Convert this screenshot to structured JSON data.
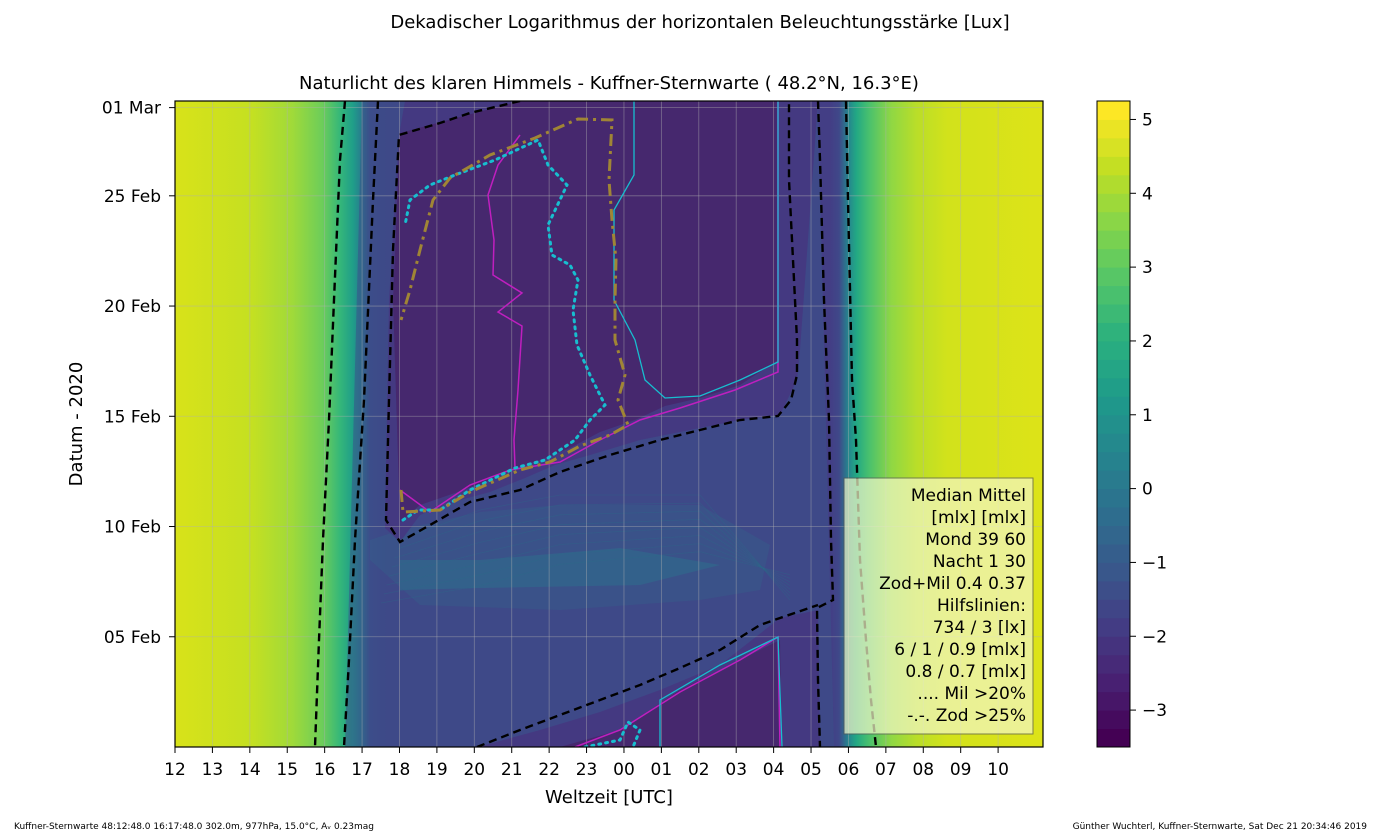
{
  "figure": {
    "suptitle": "Dekadischer Logarithmus der horizontalen Beleuchtungsstärke [Lux]",
    "footer_left": "Kuffner-Sternwarte 48:12:48.0 16:17:48.0 302.0m,  977hPa, 15.0°C, Aᵥ 0.23mag",
    "footer_right": "Günther Wuchterl, Kuffner-Sternwarte, Sat Dec 21 20:34:46 2019"
  },
  "chart_data": {
    "type": "heatmap",
    "title": "Naturlicht des klaren Himmels - Kuffner-Sternwarte ( 48.2°N, 16.3°E)",
    "xlabel": "Weltzeit [UTC]",
    "ylabel": "Datum - 2020",
    "x_ticks": [
      "12",
      "13",
      "14",
      "15",
      "16",
      "17",
      "18",
      "19",
      "20",
      "21",
      "22",
      "23",
      "00",
      "01",
      "02",
      "03",
      "04",
      "05",
      "06",
      "07",
      "08",
      "09",
      "10"
    ],
    "y_ticks": [
      "05 Feb",
      "10 Feb",
      "15 Feb",
      "20 Feb",
      "25 Feb",
      "01 Mar"
    ],
    "y_range": [
      "2020-02-01",
      "2020-03-01"
    ],
    "grid": true,
    "colorbar": {
      "ticks": [
        "−3",
        "−2",
        "−1",
        "0",
        "1",
        "2",
        "3",
        "4",
        "5"
      ],
      "tick_values": [
        -3,
        -2,
        -1,
        0,
        1,
        2,
        3,
        4,
        5
      ],
      "range": [
        -3.5,
        5.25
      ],
      "colormap": "viridis"
    },
    "legend": {
      "placement": "lower-right",
      "lines": [
        "Median Mittel",
        "[mlx]  [mlx]",
        "Mond   39  60",
        "Nacht   1  30",
        "Zod+Mil 0.4  0.37",
        "Hilfslinien:",
        "734 / 3  [lx]",
        "6 /  1 / 0.9 [mlx]",
        "0.8 / 0.7 [mlx]",
        ".... Mil >20%",
        "-.-. Zod >25%"
      ]
    },
    "colors": {
      "sunlit": "#d2e21b",
      "twilight": "#2a788e",
      "night": "#482173",
      "deep_night": "#46226d",
      "moonlit": "#3b528b",
      "magenta_contour": "#bf1fbf",
      "cyan_contour": "#17becf",
      "zodiacal_line": "#a08535",
      "dashed_contours": "#000000"
    }
  }
}
